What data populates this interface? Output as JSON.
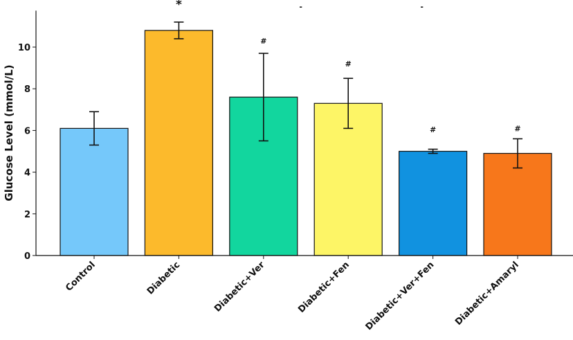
{
  "chart_data": {
    "type": "bar",
    "title": "",
    "xlabel": "",
    "ylabel": "Glucose Level (mmol/L)",
    "ylim": [
      0,
      11.75
    ],
    "yticks": [
      0,
      2,
      4,
      6,
      8,
      10
    ],
    "grid": false,
    "categories": [
      "Control",
      "Diabetic",
      "Diabetic+Ver",
      "Diabetic+Fen",
      "Diabetic+Ver+Fen",
      "Diabetic+Amaryl"
    ],
    "values": [
      6.1,
      10.8,
      7.6,
      7.3,
      5.0,
      4.9
    ],
    "errors": [
      0.8,
      0.4,
      2.1,
      1.2,
      0.1,
      0.7
    ],
    "colors": [
      "#75C8FA",
      "#FCBA2C",
      "#12D69E",
      "#FDF566",
      "#1192E0",
      "#F7771B"
    ],
    "annotations": [
      {
        "category_index": 1,
        "y": 12.0,
        "text": "*"
      },
      {
        "category_index": 2,
        "y": 10.3,
        "text": "#"
      },
      {
        "category_index": 3,
        "y": 9.2,
        "text": "#"
      },
      {
        "category_index": 4,
        "y": 6.05,
        "text": "#"
      },
      {
        "category_index": 5,
        "y": 6.1,
        "text": "#"
      },
      {
        "category_index": 2.44,
        "y": 11.95,
        "text": "-"
      },
      {
        "category_index": 3.87,
        "y": 11.95,
        "text": "-"
      }
    ]
  }
}
